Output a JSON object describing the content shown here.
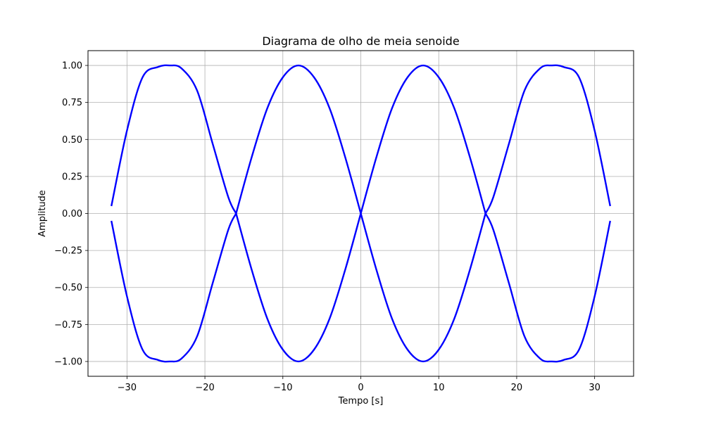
{
  "chart_data": {
    "type": "line",
    "title": "Diagrama de olho de meia senoide",
    "xlabel": "Tempo [s]",
    "ylabel": "Amplitude",
    "xlim": [
      -35,
      35
    ],
    "ylim": [
      -1.1,
      1.1
    ],
    "grid": true,
    "color": "#0000ff",
    "xticks": [
      -30,
      -20,
      -10,
      0,
      10,
      20,
      30
    ],
    "xtick_labels": [
      "−30",
      "−20",
      "−10",
      "0",
      "10",
      "20",
      "30"
    ],
    "yticks": [
      1.0,
      0.75,
      0.5,
      0.25,
      0.0,
      -0.25,
      -0.5,
      -0.75,
      -1.0
    ],
    "ytick_labels": [
      "1.00",
      "0.75",
      "0.50",
      "0.25",
      "0.00",
      "−0.25",
      "−0.50",
      "−0.75",
      "−1.00"
    ],
    "series": [
      {
        "x": [
          -32,
          -30,
          -28,
          -26,
          -24.5,
          -23,
          -21,
          -19,
          -17,
          -16
        ],
        "y": [
          0.05,
          0.56,
          0.92,
          0.99,
          1.0,
          0.98,
          0.83,
          0.47,
          0.11,
          0.0
        ]
      },
      {
        "x": [
          -16,
          -14,
          -12,
          -10,
          -8,
          -6,
          -4,
          -2,
          0
        ],
        "y": [
          0.0,
          0.38,
          0.71,
          0.92,
          1.0,
          0.92,
          0.71,
          0.38,
          0.0
        ]
      },
      {
        "x": [
          0,
          2,
          4,
          6,
          8,
          10,
          12,
          14,
          16
        ],
        "y": [
          0.0,
          0.38,
          0.71,
          0.92,
          1.0,
          0.92,
          0.71,
          0.38,
          0.0
        ]
      },
      {
        "x": [
          16,
          17,
          19,
          21,
          23,
          24.5,
          26,
          28,
          30,
          32
        ],
        "y": [
          0.0,
          0.11,
          0.47,
          0.83,
          0.98,
          1.0,
          0.99,
          0.92,
          0.56,
          0.05
        ]
      },
      {
        "x": [
          -32,
          -30,
          -28,
          -26,
          -24.5,
          -23,
          -21,
          -19,
          -17,
          -16
        ],
        "y": [
          -0.05,
          -0.56,
          -0.92,
          -0.99,
          -1.0,
          -0.98,
          -0.83,
          -0.47,
          -0.11,
          0.0
        ]
      },
      {
        "x": [
          -16,
          -14,
          -12,
          -10,
          -8,
          -6,
          -4,
          -2,
          0
        ],
        "y": [
          0.0,
          -0.38,
          -0.71,
          -0.92,
          -1.0,
          -0.92,
          -0.71,
          -0.38,
          0.0
        ]
      },
      {
        "x": [
          0,
          2,
          4,
          6,
          8,
          10,
          12,
          14,
          16
        ],
        "y": [
          0.0,
          -0.38,
          -0.71,
          -0.92,
          -1.0,
          -0.92,
          -0.71,
          -0.38,
          0.0
        ]
      },
      {
        "x": [
          16,
          17,
          19,
          21,
          23,
          24.5,
          26,
          28,
          30,
          32
        ],
        "y": [
          0.0,
          -0.11,
          -0.47,
          -0.83,
          -0.98,
          -1.0,
          -0.99,
          -0.92,
          -0.56,
          -0.05
        ]
      }
    ]
  }
}
